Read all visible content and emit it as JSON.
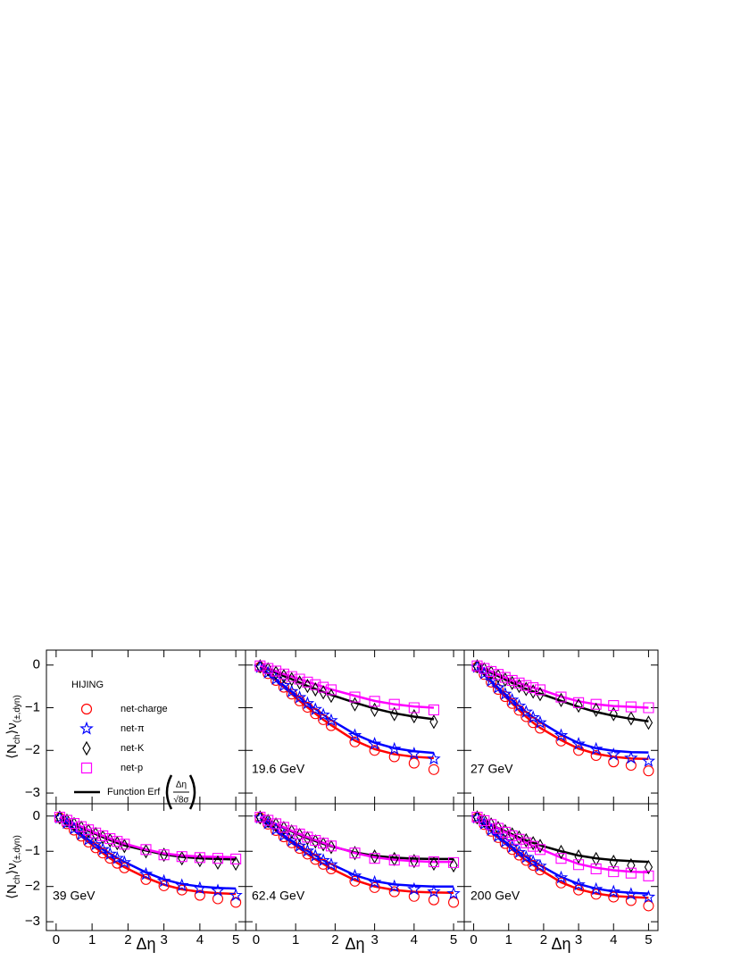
{
  "chart_data": {
    "type": "scatter",
    "y_label": [
      "⟨N",
      "ch",
      "⟩ν",
      "(±,dyn)"
    ],
    "x_label": "Δη",
    "xlim": [
      -0.27,
      5.27
    ],
    "ylim": [
      -3.25,
      0.35
    ],
    "xticks": [
      0,
      1,
      2,
      3,
      4,
      5
    ],
    "yticks": [
      0,
      {
        "value": -1,
        "label": "−1"
      },
      {
        "value": -2,
        "label": "−2"
      },
      {
        "value": -3,
        "label": "−3"
      }
    ],
    "legend": {
      "title": "HIJING",
      "series": [
        {
          "name": "net-charge",
          "color": "#ff0000",
          "marker": "circle"
        },
        {
          "name": "net-π",
          "color": "#0000ff",
          "marker": "star"
        },
        {
          "name": "net-K",
          "color": "#000000",
          "marker": "diamond"
        },
        {
          "name": "net-p",
          "color": "#ff00ff",
          "marker": "square"
        }
      ],
      "fit": {
        "name": "Function Erf",
        "numerator": "Δη",
        "denominator": "√8σ",
        "color": "#000000"
      }
    },
    "x": [
      0.1,
      0.3,
      0.5,
      0.7,
      0.9,
      1.1,
      1.3,
      1.5,
      1.7,
      1.9,
      2.5,
      3,
      3.5,
      4,
      4.5,
      5
    ],
    "panels": [
      {
        "label": "19.6 GeV",
        "series": [
          {
            "values": [
              -0.05,
              -0.2,
              -0.36,
              -0.52,
              -0.68,
              -0.84,
              -0.99,
              -1.14,
              -1.28,
              -1.42,
              -1.8,
              -2.0,
              -2.15,
              -2.3,
              -2.45,
              null
            ],
            "fit": [
              -0.05,
              -0.2,
              -0.36,
              -0.52,
              -0.68,
              -0.84,
              -0.99,
              -1.14,
              -1.28,
              -1.41,
              -1.77,
              -1.97,
              -2.09,
              -2.15,
              -2.18,
              null
            ]
          },
          {
            "values": [
              -0.05,
              -0.18,
              -0.33,
              -0.48,
              -0.62,
              -0.76,
              -0.9,
              -1.04,
              -1.17,
              -1.3,
              -1.65,
              -1.85,
              -1.97,
              -2.08,
              -2.2,
              null
            ],
            "fit": [
              -0.05,
              -0.18,
              -0.33,
              -0.48,
              -0.62,
              -0.76,
              -0.9,
              -1.03,
              -1.16,
              -1.29,
              -1.62,
              -1.82,
              -1.95,
              -2.02,
              -2.06,
              null
            ]
          },
          {
            "values": [
              -0.03,
              -0.1,
              -0.18,
              -0.26,
              -0.33,
              -0.41,
              -0.49,
              -0.57,
              -0.64,
              -0.72,
              -0.92,
              -1.05,
              -1.15,
              -1.2,
              -1.33,
              null
            ],
            "fit": [
              -0.03,
              -0.1,
              -0.18,
              -0.26,
              -0.33,
              -0.41,
              -0.49,
              -0.56,
              -0.63,
              -0.7,
              -0.88,
              -1.02,
              -1.13,
              -1.21,
              -1.27,
              null
            ]
          },
          {
            "values": [
              -0.02,
              -0.08,
              -0.14,
              -0.21,
              -0.27,
              -0.33,
              -0.4,
              -0.46,
              -0.52,
              -0.58,
              -0.75,
              -0.85,
              -0.92,
              -1.0,
              -1.05,
              null
            ],
            "fit": [
              -0.02,
              -0.08,
              -0.14,
              -0.21,
              -0.27,
              -0.33,
              -0.39,
              -0.45,
              -0.51,
              -0.57,
              -0.72,
              -0.84,
              -0.92,
              -0.97,
              -1.0,
              null
            ]
          }
        ]
      },
      {
        "label": "27 GeV",
        "series": [
          {
            "values": [
              -0.05,
              -0.22,
              -0.4,
              -0.57,
              -0.74,
              -0.9,
              -1.06,
              -1.21,
              -1.35,
              -1.48,
              -1.78,
              -2.0,
              -2.12,
              -2.27,
              -2.35,
              -2.48
            ],
            "fit": [
              -0.05,
              -0.22,
              -0.4,
              -0.57,
              -0.74,
              -0.9,
              -1.06,
              -1.21,
              -1.35,
              -1.47,
              -1.76,
              -1.96,
              -2.08,
              -2.15,
              -2.19,
              -2.2
            ]
          },
          {
            "values": [
              -0.05,
              -0.2,
              -0.37,
              -0.53,
              -0.68,
              -0.82,
              -0.96,
              -1.1,
              -1.23,
              -1.35,
              -1.65,
              -1.85,
              -1.97,
              -2.1,
              -2.18,
              -2.25
            ],
            "fit": [
              -0.05,
              -0.2,
              -0.37,
              -0.53,
              -0.68,
              -0.82,
              -0.96,
              -1.1,
              -1.22,
              -1.33,
              -1.63,
              -1.83,
              -1.95,
              -2.01,
              -2.04,
              -2.05
            ]
          },
          {
            "values": [
              -0.03,
              -0.1,
              -0.18,
              -0.26,
              -0.34,
              -0.42,
              -0.49,
              -0.56,
              -0.62,
              -0.68,
              -0.82,
              -0.95,
              -1.05,
              -1.15,
              -1.25,
              -1.35
            ],
            "fit": [
              -0.03,
              -0.1,
              -0.18,
              -0.26,
              -0.34,
              -0.42,
              -0.49,
              -0.56,
              -0.62,
              -0.67,
              -0.84,
              -0.98,
              -1.1,
              -1.19,
              -1.26,
              -1.32
            ]
          },
          {
            "values": [
              -0.02,
              -0.08,
              -0.15,
              -0.22,
              -0.29,
              -0.36,
              -0.42,
              -0.48,
              -0.53,
              -0.58,
              -0.75,
              -0.88,
              -0.92,
              -0.95,
              -0.98,
              -1.0
            ],
            "fit": [
              -0.02,
              -0.08,
              -0.15,
              -0.22,
              -0.29,
              -0.36,
              -0.42,
              -0.48,
              -0.53,
              -0.57,
              -0.74,
              -0.85,
              -0.92,
              -0.96,
              -0.98,
              -1.0
            ]
          }
        ]
      },
      {
        "label": "39 GeV",
        "series": [
          {
            "values": [
              -0.05,
              -0.22,
              -0.4,
              -0.57,
              -0.74,
              -0.9,
              -1.05,
              -1.2,
              -1.34,
              -1.47,
              -1.8,
              -1.98,
              -2.1,
              -2.25,
              -2.35,
              -2.45
            ],
            "fit": [
              -0.05,
              -0.22,
              -0.4,
              -0.57,
              -0.74,
              -0.9,
              -1.05,
              -1.2,
              -1.33,
              -1.45,
              -1.75,
              -1.95,
              -2.08,
              -2.15,
              -2.19,
              -2.21
            ]
          },
          {
            "values": [
              -0.05,
              -0.2,
              -0.36,
              -0.52,
              -0.67,
              -0.81,
              -0.95,
              -1.08,
              -1.2,
              -1.32,
              -1.65,
              -1.85,
              -1.97,
              -2.05,
              -2.12,
              -2.25
            ],
            "fit": [
              -0.05,
              -0.2,
              -0.36,
              -0.52,
              -0.67,
              -0.81,
              -0.95,
              -1.07,
              -1.19,
              -1.3,
              -1.6,
              -1.8,
              -1.93,
              -2.0,
              -2.04,
              -2.06
            ]
          },
          {
            "values": [
              -0.04,
              -0.13,
              -0.23,
              -0.33,
              -0.42,
              -0.51,
              -0.6,
              -0.69,
              -0.77,
              -0.85,
              -1.0,
              -1.1,
              -1.2,
              -1.25,
              -1.32,
              -1.35
            ],
            "fit": [
              -0.04,
              -0.13,
              -0.23,
              -0.33,
              -0.42,
              -0.51,
              -0.6,
              -0.68,
              -0.76,
              -0.83,
              -0.98,
              -1.09,
              -1.16,
              -1.2,
              -1.22,
              -1.23
            ]
          },
          {
            "values": [
              -0.03,
              -0.12,
              -0.21,
              -0.3,
              -0.39,
              -0.48,
              -0.56,
              -0.64,
              -0.72,
              -0.8,
              -0.95,
              -1.1,
              -1.15,
              -1.18,
              -1.2,
              -1.22
            ],
            "fit": [
              -0.03,
              -0.12,
              -0.21,
              -0.3,
              -0.39,
              -0.48,
              -0.56,
              -0.64,
              -0.71,
              -0.78,
              -0.95,
              -1.06,
              -1.12,
              -1.15,
              -1.16,
              -1.17
            ]
          }
        ]
      },
      {
        "label": "62.4 GeV",
        "series": [
          {
            "values": [
              -0.05,
              -0.23,
              -0.41,
              -0.59,
              -0.76,
              -0.92,
              -1.08,
              -1.23,
              -1.37,
              -1.5,
              -1.85,
              -2.03,
              -2.15,
              -2.28,
              -2.38,
              -2.45
            ],
            "fit": [
              -0.05,
              -0.23,
              -0.41,
              -0.59,
              -0.76,
              -0.92,
              -1.08,
              -1.23,
              -1.36,
              -1.49,
              -1.82,
              -2.0,
              -2.1,
              -2.15,
              -2.17,
              -2.18
            ]
          },
          {
            "values": [
              -0.05,
              -0.21,
              -0.38,
              -0.55,
              -0.7,
              -0.85,
              -0.99,
              -1.13,
              -1.26,
              -1.38,
              -1.7,
              -1.88,
              -2.0,
              -2.08,
              -2.15,
              -2.2
            ],
            "fit": [
              -0.05,
              -0.21,
              -0.38,
              -0.55,
              -0.7,
              -0.85,
              -0.99,
              -1.12,
              -1.25,
              -1.36,
              -1.68,
              -1.85,
              -1.94,
              -1.98,
              -2.0,
              -2.0
            ]
          },
          {
            "values": [
              -0.04,
              -0.14,
              -0.24,
              -0.34,
              -0.44,
              -0.54,
              -0.63,
              -0.72,
              -0.8,
              -0.88,
              -1.05,
              -1.15,
              -1.22,
              -1.28,
              -1.35,
              -1.4
            ],
            "fit": [
              -0.04,
              -0.14,
              -0.24,
              -0.34,
              -0.44,
              -0.54,
              -0.63,
              -0.71,
              -0.79,
              -0.86,
              -1.03,
              -1.13,
              -1.18,
              -1.21,
              -1.22,
              -1.22
            ]
          },
          {
            "values": [
              -0.03,
              -0.12,
              -0.22,
              -0.32,
              -0.42,
              -0.51,
              -0.6,
              -0.69,
              -0.77,
              -0.85,
              -1.05,
              -1.2,
              -1.25,
              -1.28,
              -1.3,
              -1.32
            ],
            "fit": [
              -0.03,
              -0.12,
              -0.22,
              -0.32,
              -0.42,
              -0.51,
              -0.6,
              -0.68,
              -0.76,
              -0.84,
              -1.05,
              -1.17,
              -1.24,
              -1.28,
              -1.3,
              -1.3
            ]
          }
        ]
      },
      {
        "label": "200 GeV",
        "series": [
          {
            "values": [
              -0.05,
              -0.24,
              -0.43,
              -0.61,
              -0.78,
              -0.95,
              -1.11,
              -1.26,
              -1.4,
              -1.53,
              -1.9,
              -2.1,
              -2.22,
              -2.3,
              -2.4,
              -2.55
            ],
            "fit": [
              -0.05,
              -0.24,
              -0.43,
              -0.61,
              -0.78,
              -0.95,
              -1.11,
              -1.26,
              -1.39,
              -1.52,
              -1.88,
              -2.08,
              -2.2,
              -2.27,
              -2.3,
              -2.32
            ]
          },
          {
            "values": [
              -0.05,
              -0.22,
              -0.4,
              -0.57,
              -0.73,
              -0.88,
              -1.03,
              -1.17,
              -1.3,
              -1.42,
              -1.75,
              -1.95,
              -2.08,
              -2.15,
              -2.22,
              -2.3
            ],
            "fit": [
              -0.05,
              -0.22,
              -0.4,
              -0.57,
              -0.73,
              -0.88,
              -1.03,
              -1.16,
              -1.29,
              -1.4,
              -1.73,
              -1.93,
              -2.06,
              -2.14,
              -2.18,
              -2.2
            ]
          },
          {
            "values": [
              -0.04,
              -0.14,
              -0.24,
              -0.34,
              -0.43,
              -0.52,
              -0.61,
              -0.69,
              -0.77,
              -0.85,
              -1.02,
              -1.15,
              -1.22,
              -1.3,
              -1.4,
              -1.45
            ],
            "fit": [
              -0.04,
              -0.14,
              -0.24,
              -0.34,
              -0.43,
              -0.52,
              -0.61,
              -0.69,
              -0.76,
              -0.83,
              -1.0,
              -1.12,
              -1.2,
              -1.25,
              -1.28,
              -1.3
            ]
          },
          {
            "values": [
              -0.03,
              -0.13,
              -0.24,
              -0.35,
              -0.46,
              -0.56,
              -0.66,
              -0.76,
              -0.86,
              -0.95,
              -1.2,
              -1.38,
              -1.5,
              -1.58,
              -1.62,
              -1.7
            ],
            "fit": [
              -0.03,
              -0.13,
              -0.24,
              -0.35,
              -0.46,
              -0.56,
              -0.66,
              -0.76,
              -0.85,
              -0.93,
              -1.18,
              -1.36,
              -1.47,
              -1.54,
              -1.58,
              -1.6
            ]
          }
        ]
      }
    ]
  }
}
